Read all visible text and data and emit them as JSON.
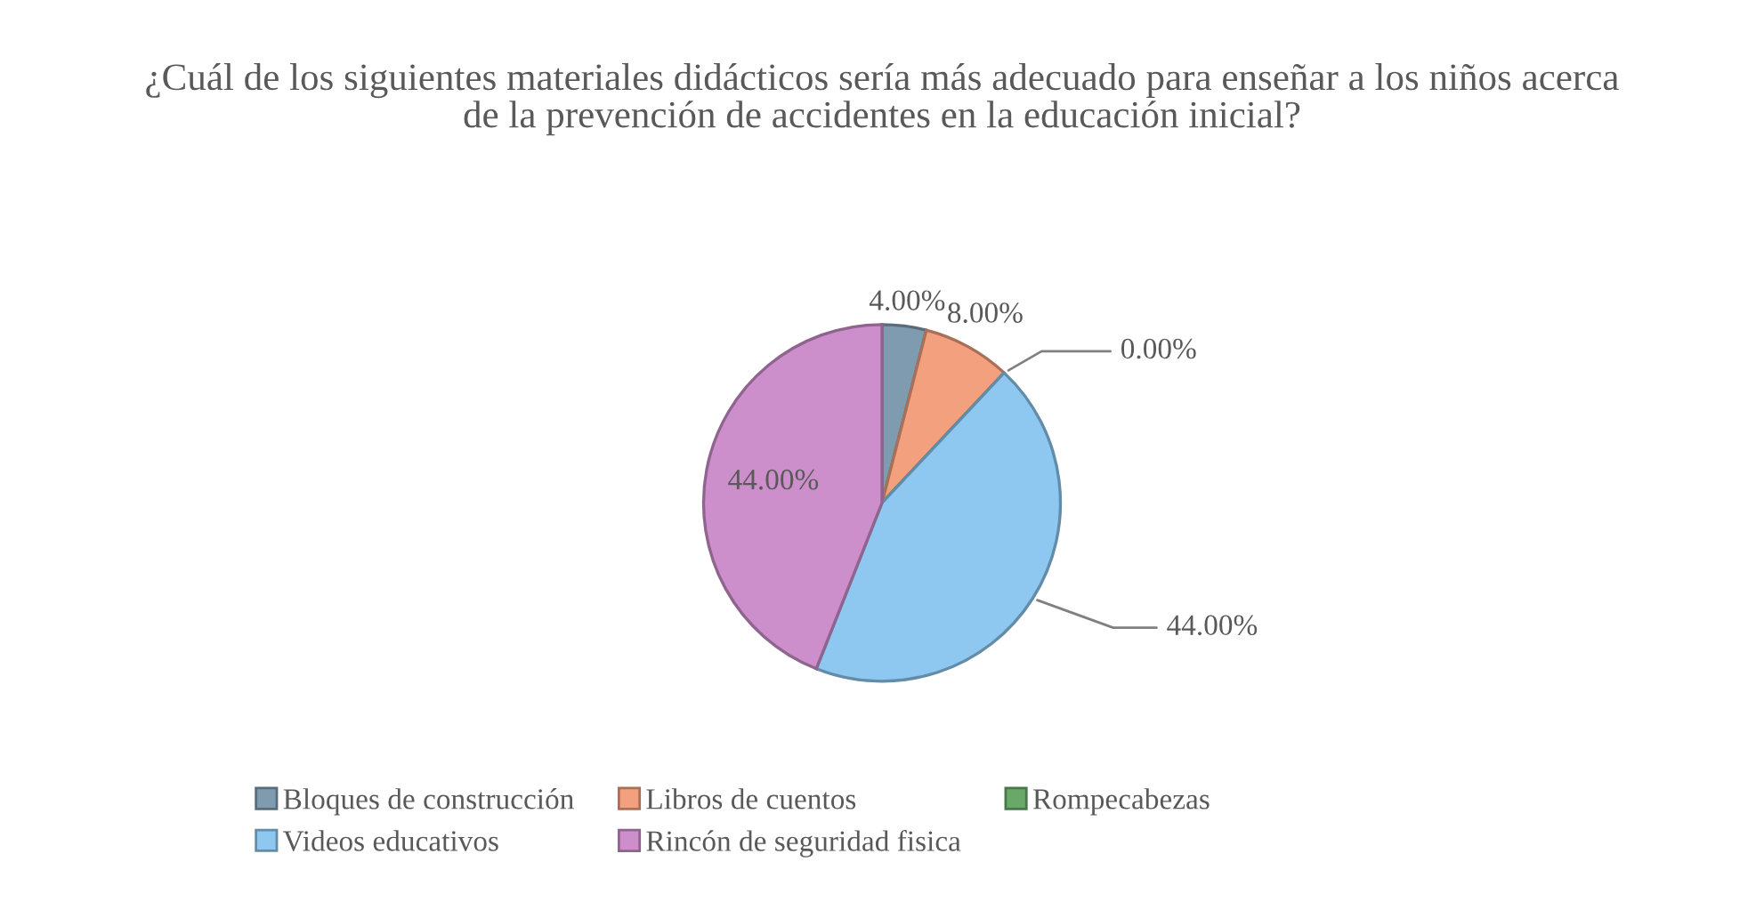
{
  "chart_data": {
    "type": "pie",
    "title": "¿Cuál de los siguientes materiales didácticos sería más adecuado para enseñar a los niños acerca de la prevención de accidentes en la educación inicial?",
    "categories": [
      "Bloques de construcción",
      "Libros de cuentos",
      "Rompecabezas",
      "Videos educativos",
      "Rincón de seguridad fisica"
    ],
    "values": [
      4,
      8,
      0,
      44,
      44
    ],
    "value_labels": [
      "4.00%",
      "8.00%",
      "0.00%",
      "44.00%",
      "44.00%"
    ],
    "colors": [
      "#7f9bb0",
      "#f2a07e",
      "#6aa86a",
      "#8ec8f0",
      "#cc8fcc"
    ],
    "legend": "bottom"
  }
}
